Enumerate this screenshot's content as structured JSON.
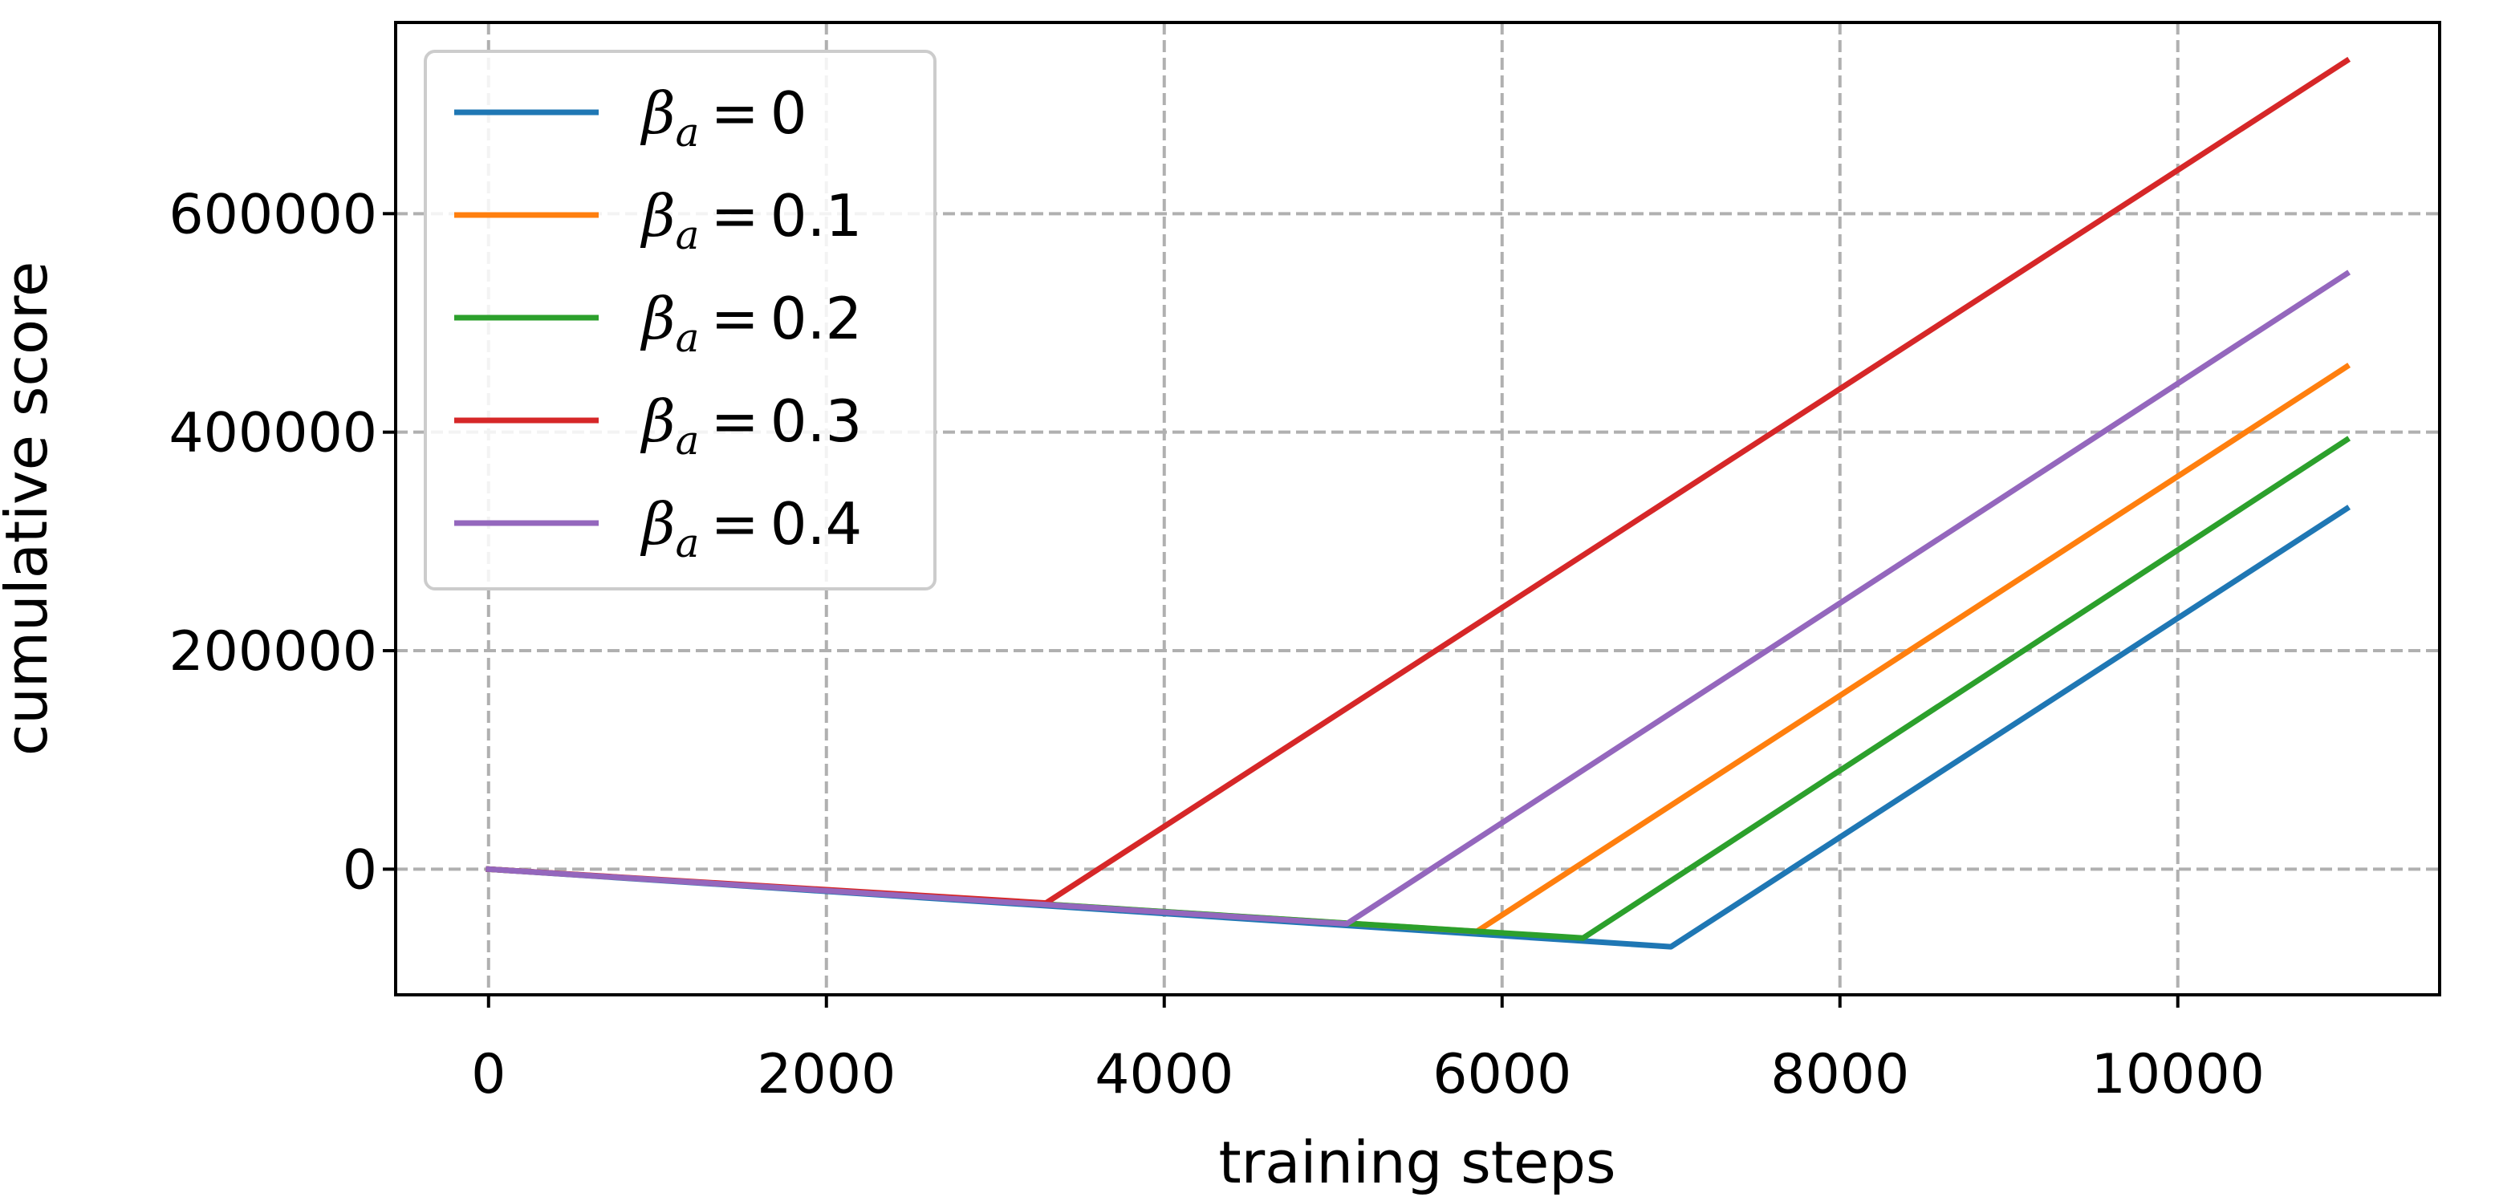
{
  "chart_data": {
    "type": "line",
    "title": "",
    "xlabel": "training steps",
    "ylabel": "cumulative score",
    "xlim": [
      -550,
      11550
    ],
    "ylim": [
      -115000,
      775000
    ],
    "xticks": [
      0,
      2000,
      4000,
      6000,
      8000,
      10000
    ],
    "xtick_labels": [
      "0",
      "2000",
      "4000",
      "6000",
      "8000",
      "10000"
    ],
    "yticks": [
      0,
      200000,
      400000,
      600000
    ],
    "ytick_labels": [
      "0",
      "200000",
      "400000",
      "600000"
    ],
    "grid": true,
    "legend_position": "top-left",
    "series": [
      {
        "name": "β_a = 0",
        "symbol": "β",
        "subscript": "a",
        "value_text": "0",
        "color": "#1f77b4",
        "x": [
          0,
          7000,
          11000
        ],
        "y": [
          0,
          -71000,
          330000
        ]
      },
      {
        "name": "β_a = 0.1",
        "symbol": "β",
        "subscript": "a",
        "value_text": "0.1",
        "color": "#ff7f0e",
        "x": [
          0,
          5850,
          11000
        ],
        "y": [
          0,
          -57000,
          460000
        ]
      },
      {
        "name": "β_a = 0.2",
        "symbol": "β",
        "subscript": "a",
        "value_text": "0.2",
        "color": "#2ca02c",
        "x": [
          0,
          6480,
          11000
        ],
        "y": [
          0,
          -63000,
          393000
        ]
      },
      {
        "name": "β_a = 0.3",
        "symbol": "β",
        "subscript": "a",
        "value_text": "0.3",
        "color": "#d62728",
        "x": [
          0,
          3300,
          11000
        ],
        "y": [
          0,
          -31000,
          740000
        ]
      },
      {
        "name": "β_a = 0.4",
        "symbol": "β",
        "subscript": "a",
        "value_text": "0.4",
        "color": "#9467bd",
        "x": [
          0,
          5080,
          11000
        ],
        "y": [
          0,
          -50000,
          545000
        ]
      }
    ]
  }
}
